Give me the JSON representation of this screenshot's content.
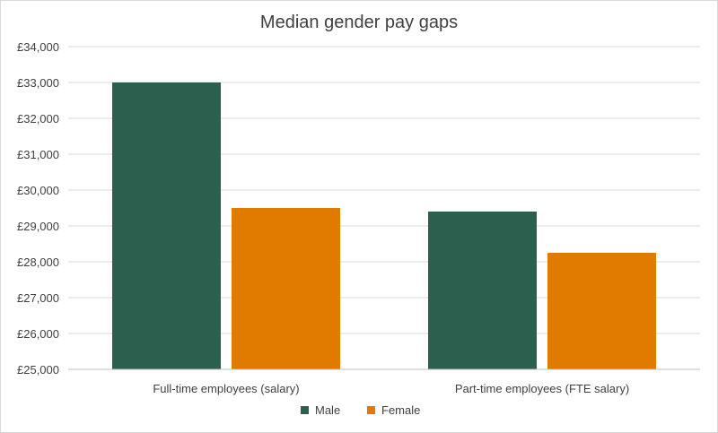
{
  "chart_data": {
    "type": "bar",
    "title": "Median gender pay gaps",
    "categories": [
      "Full-time employees (salary)",
      "Part-time employees (FTE salary)"
    ],
    "series": [
      {
        "name": "Male",
        "color": "#2d5f4f",
        "values": [
          33000,
          29400
        ]
      },
      {
        "name": "Female",
        "color": "#e07b00",
        "values": [
          29500,
          28250
        ]
      }
    ],
    "y_ticks": [
      "£25,000",
      "£26,000",
      "£27,000",
      "£28,000",
      "£29,000",
      "£30,000",
      "£31,000",
      "£32,000",
      "£33,000",
      "£34,000"
    ],
    "ylim": [
      25000,
      34000
    ],
    "grid": true,
    "legend_position": "bottom"
  }
}
